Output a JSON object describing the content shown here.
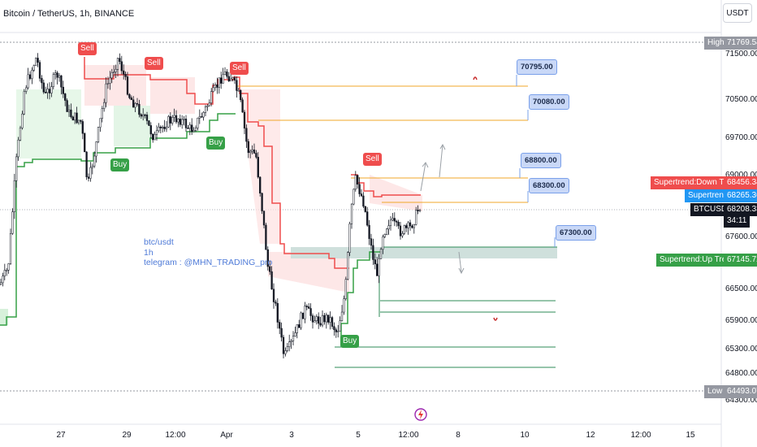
{
  "header": {
    "title": "Bitcoin / TetherUS, 1h, BINANCE",
    "currency": "USDT"
  },
  "price_axis": {
    "ticks": [
      "71500.00",
      "70500.00",
      "69700.00",
      "69000.00",
      "67600.00",
      "66500.00",
      "65900.00",
      "65300.00",
      "64800.00",
      "64300.00"
    ],
    "high": {
      "label": "High",
      "value": "71769.54"
    },
    "low": {
      "label": "Low",
      "value": "64493.07"
    },
    "tags": [
      {
        "label": "Supertrend:Down Trend",
        "value": "68456.34",
        "color": "#ef4d4d"
      },
      {
        "label": "Supertrend",
        "value": "68265.36",
        "color": "#2196f3"
      },
      {
        "label": "BTCUSDT",
        "value": "68208.33",
        "countdown": "34:11",
        "color": "#131722"
      },
      {
        "label": "Supertrend:Up Trend",
        "value": "67145.72",
        "color": "#36a047"
      }
    ]
  },
  "time_axis": {
    "ticks": [
      "27",
      "29",
      "12:00",
      "Apr",
      "3",
      "5",
      "12:00",
      "8",
      "10",
      "12",
      "12:00",
      "15"
    ]
  },
  "callouts": [
    "70795.00",
    "70080.00",
    "68800.00",
    "68300.00",
    "67300.00"
  ],
  "signals": {
    "sell": "Sell",
    "buy": "Buy"
  },
  "annotation": {
    "line1": "btc/usdt",
    "line2": "1h",
    "line3": "telegram : @MHN_TRADING_pro"
  },
  "colors": {
    "up": "#131722",
    "supertrend_up": "#36a047",
    "supertrend_down": "#ef4d4d",
    "level_orange": "#f0a72a",
    "level_green": "#2e8b57"
  }
}
